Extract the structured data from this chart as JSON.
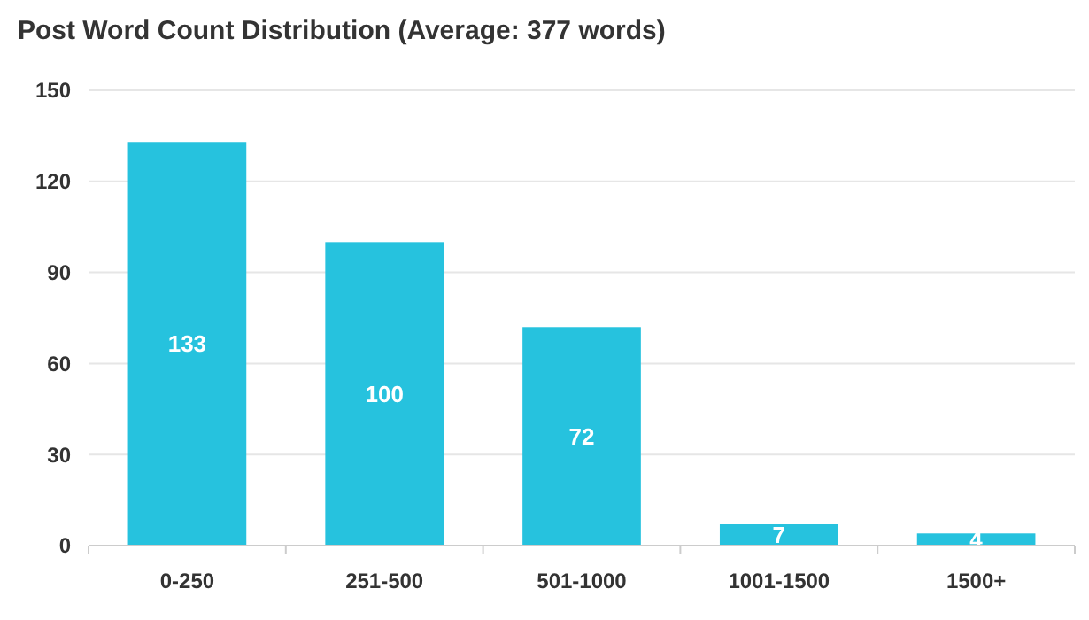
{
  "chart_data": {
    "type": "bar",
    "title": "Post Word Count Distribution (Average: 377 words)",
    "categories": [
      "0-250",
      "251-500",
      "501-1000",
      "1001-1500",
      "1500+"
    ],
    "values": [
      133,
      100,
      72,
      7,
      4
    ],
    "color": "#26c2de",
    "ylim": [
      0,
      150
    ],
    "yticks": [
      0,
      30,
      60,
      90,
      120,
      150
    ],
    "grid": "y",
    "data_labels": true
  }
}
